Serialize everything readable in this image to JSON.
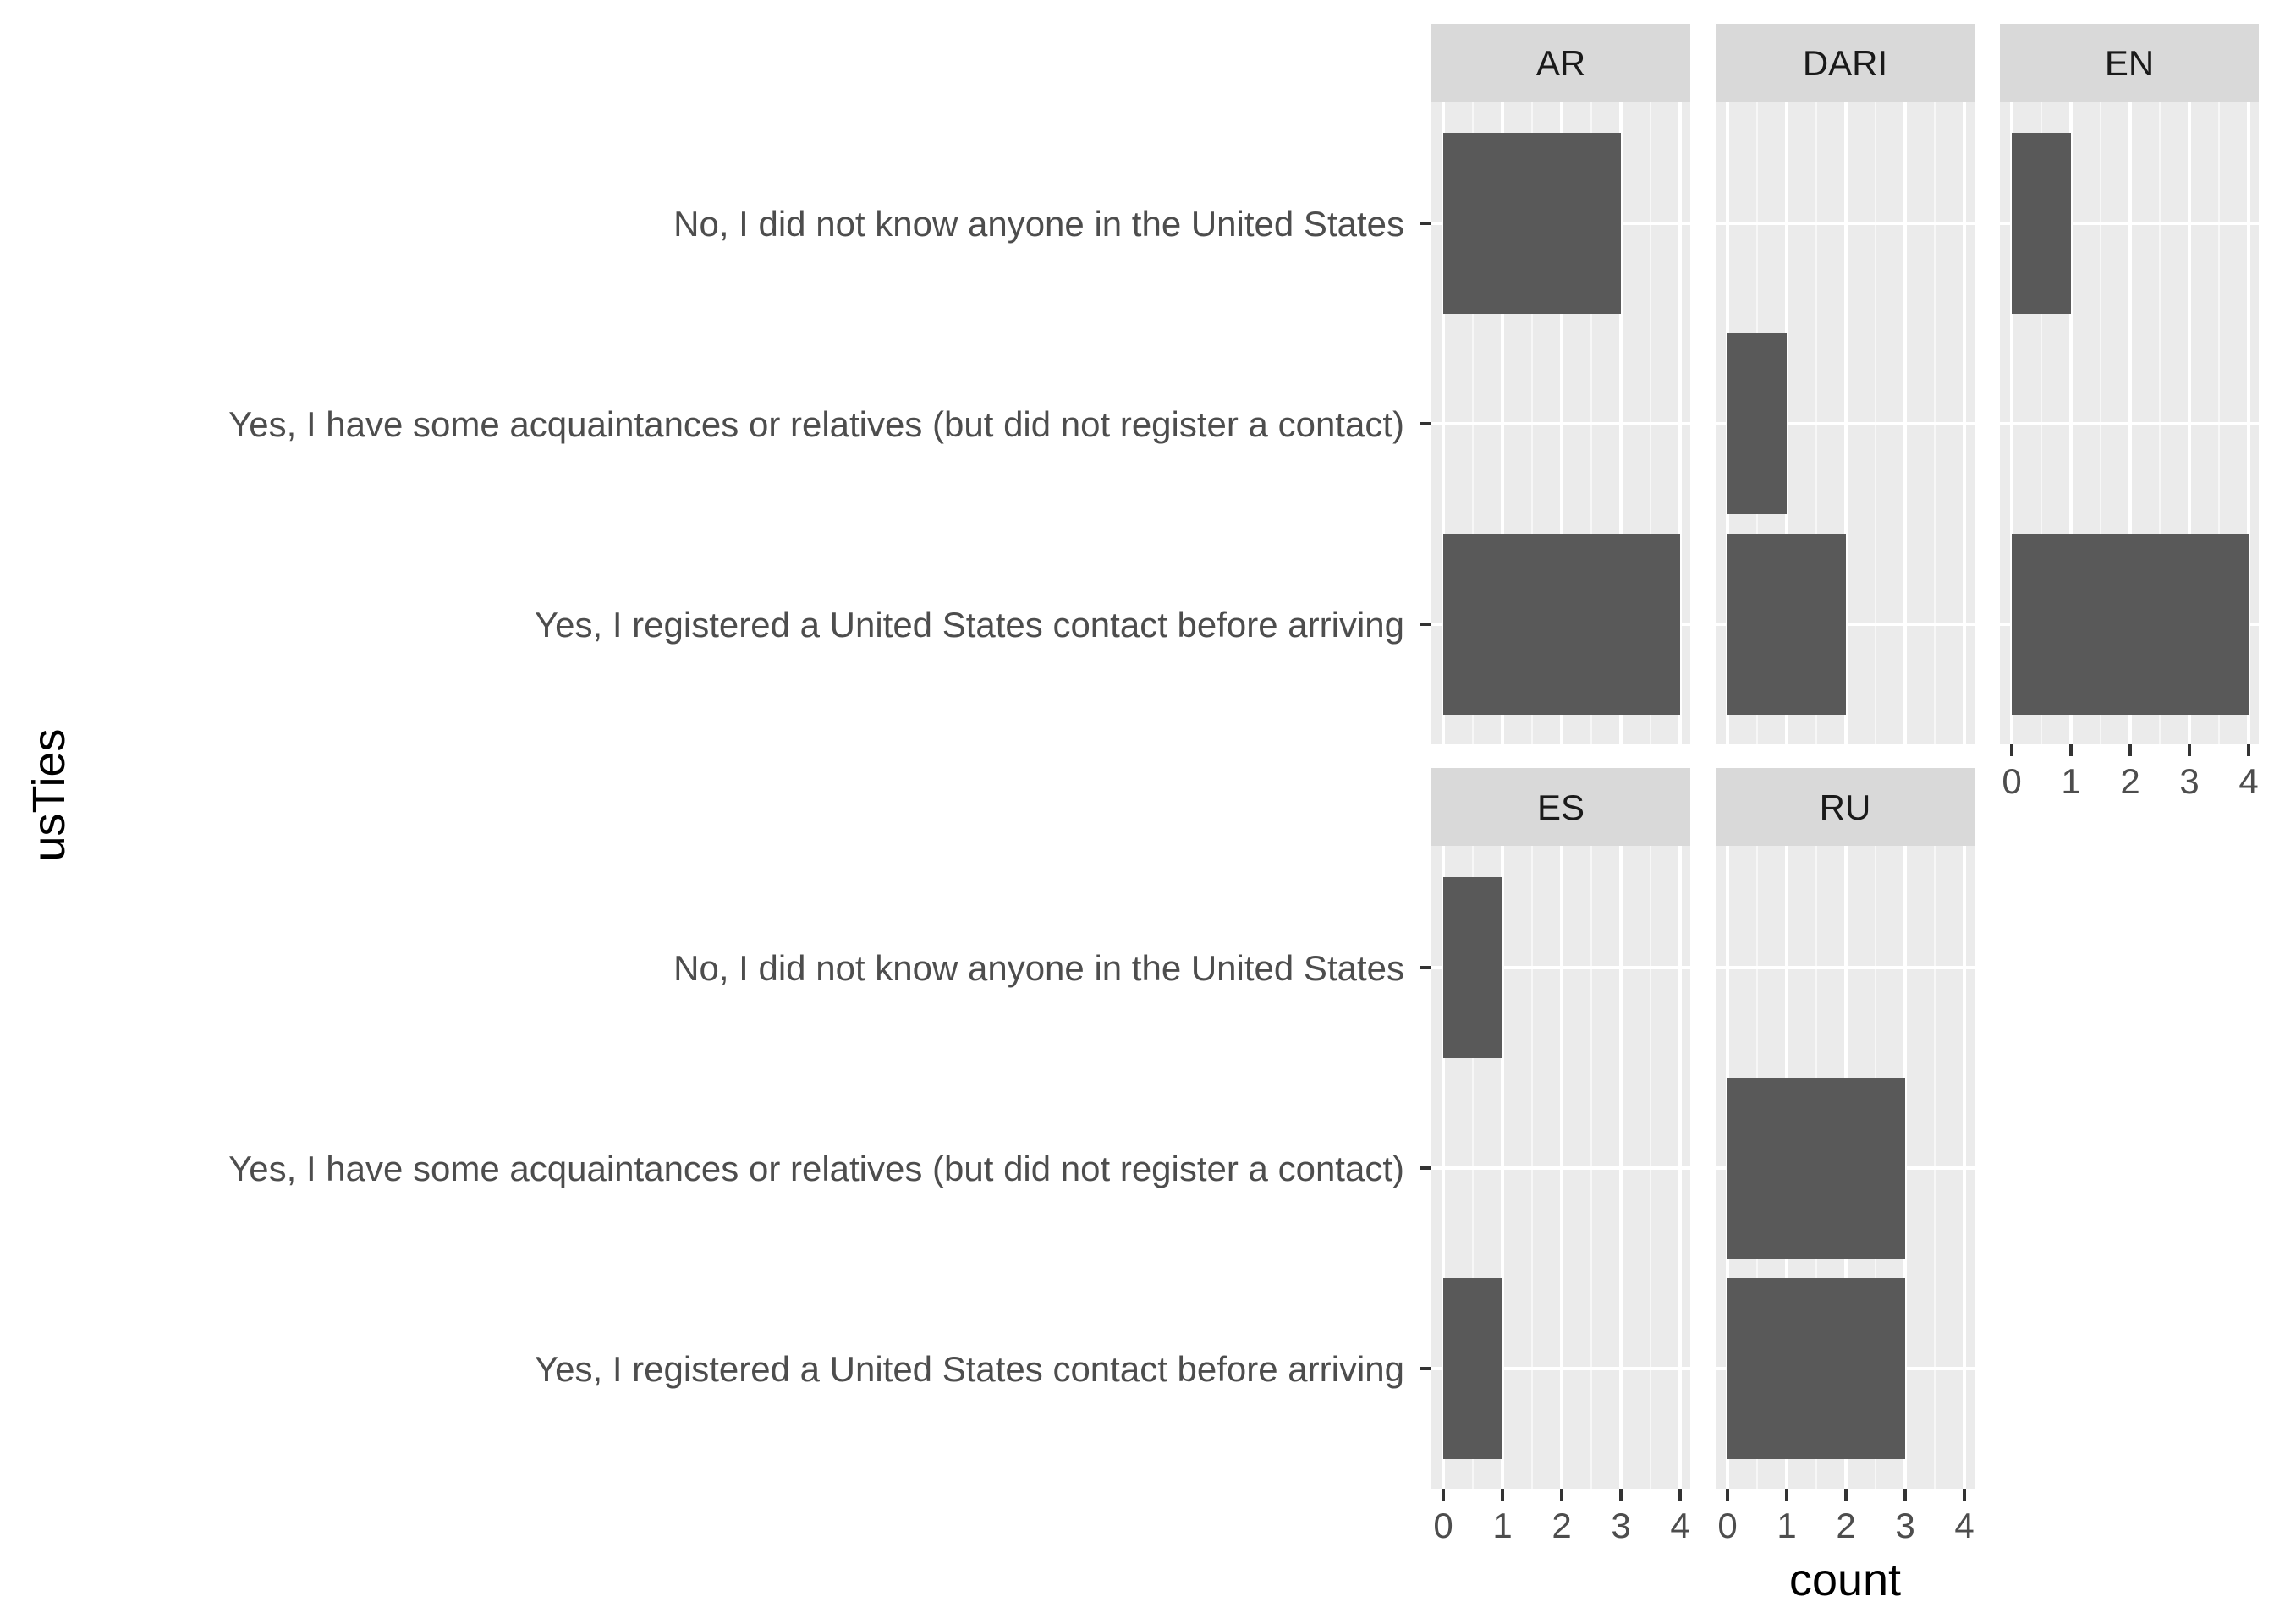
{
  "chart_data": {
    "type": "bar",
    "orientation": "horizontal",
    "facet_by": "language",
    "xlabel": "count",
    "ylabel": "usTies",
    "xlim": [
      0,
      4
    ],
    "x_ticks": [
      "0",
      "1",
      "2",
      "3",
      "4"
    ],
    "grid": true,
    "categories": [
      "No, I did not know anyone in the United States",
      "Yes, I have some acquaintances or relatives (but did not register a contact)",
      "Yes, I registered a United States contact before arriving"
    ],
    "facets": [
      {
        "name": "AR",
        "values": [
          3,
          0,
          4
        ]
      },
      {
        "name": "DARI",
        "values": [
          0,
          1,
          2
        ]
      },
      {
        "name": "EN",
        "values": [
          1,
          0,
          4
        ]
      },
      {
        "name": "ES",
        "values": [
          1,
          0,
          1
        ]
      },
      {
        "name": "RU",
        "values": [
          0,
          3,
          3
        ]
      }
    ],
    "colors": {
      "bar": "#595959",
      "panel": "#EBEBEB",
      "strip": "#D9D9D9"
    }
  }
}
